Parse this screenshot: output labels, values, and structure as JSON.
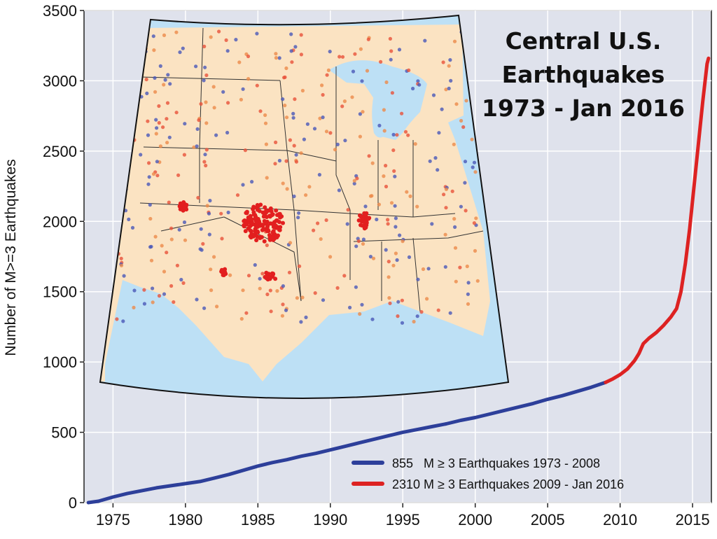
{
  "chart_data": {
    "type": "line",
    "title_lines": [
      "Central U.S.",
      "Earthquakes",
      "1973 - Jan 2016"
    ],
    "xlabel": "",
    "ylabel": "Number of M>=3 Earthquakes",
    "xlim": [
      1973,
      2016.3
    ],
    "ylim": [
      0,
      3500
    ],
    "x_ticks": [
      1975,
      1980,
      1985,
      1990,
      1995,
      2000,
      2005,
      2010,
      2015
    ],
    "y_ticks": [
      0,
      500,
      1000,
      1500,
      2000,
      2500,
      3000,
      3500
    ],
    "grid": true,
    "legend_position": "bottom-right",
    "series": [
      {
        "name": "855   M ≥ 3 Earthquakes 1973 - 2008",
        "color": "#2d3f9a",
        "points": [
          [
            1973.3,
            0
          ],
          [
            1974,
            10
          ],
          [
            1975,
            40
          ],
          [
            1976,
            65
          ],
          [
            1977,
            85
          ],
          [
            1978,
            105
          ],
          [
            1979,
            120
          ],
          [
            1980,
            135
          ],
          [
            1981,
            150
          ],
          [
            1982,
            175
          ],
          [
            1983,
            200
          ],
          [
            1984,
            230
          ],
          [
            1985,
            260
          ],
          [
            1986,
            285
          ],
          [
            1987,
            305
          ],
          [
            1988,
            330
          ],
          [
            1989,
            350
          ],
          [
            1990,
            375
          ],
          [
            1991,
            400
          ],
          [
            1992,
            425
          ],
          [
            1993,
            450
          ],
          [
            1994,
            475
          ],
          [
            1995,
            500
          ],
          [
            1996,
            520
          ],
          [
            1997,
            540
          ],
          [
            1998,
            560
          ],
          [
            1999,
            585
          ],
          [
            2000,
            605
          ],
          [
            2001,
            630
          ],
          [
            2002,
            655
          ],
          [
            2003,
            680
          ],
          [
            2004,
            705
          ],
          [
            2005,
            735
          ],
          [
            2006,
            760
          ],
          [
            2007,
            790
          ],
          [
            2008,
            820
          ],
          [
            2009,
            855
          ]
        ]
      },
      {
        "name": "2310 M ≥ 3 Earthquakes 2009 - Jan 2016",
        "color": "#dd2222",
        "points": [
          [
            2009,
            855
          ],
          [
            2009.5,
            880
          ],
          [
            2010,
            910
          ],
          [
            2010.5,
            950
          ],
          [
            2011,
            1010
          ],
          [
            2011.3,
            1060
          ],
          [
            2011.6,
            1130
          ],
          [
            2012,
            1170
          ],
          [
            2012.5,
            1210
          ],
          [
            2013,
            1260
          ],
          [
            2013.5,
            1320
          ],
          [
            2013.9,
            1380
          ],
          [
            2014.2,
            1500
          ],
          [
            2014.5,
            1700
          ],
          [
            2014.8,
            1950
          ],
          [
            2015.1,
            2250
          ],
          [
            2015.4,
            2550
          ],
          [
            2015.7,
            2850
          ],
          [
            2016,
            3120
          ],
          [
            2016.1,
            3160
          ]
        ]
      }
    ],
    "inset_map": {
      "kind": "map",
      "land_color": "#fbe3c2",
      "water_color": "#bde0f5",
      "event_colors": [
        "#4a57b8",
        "#e8513a",
        "#ec8a4a"
      ]
    }
  }
}
